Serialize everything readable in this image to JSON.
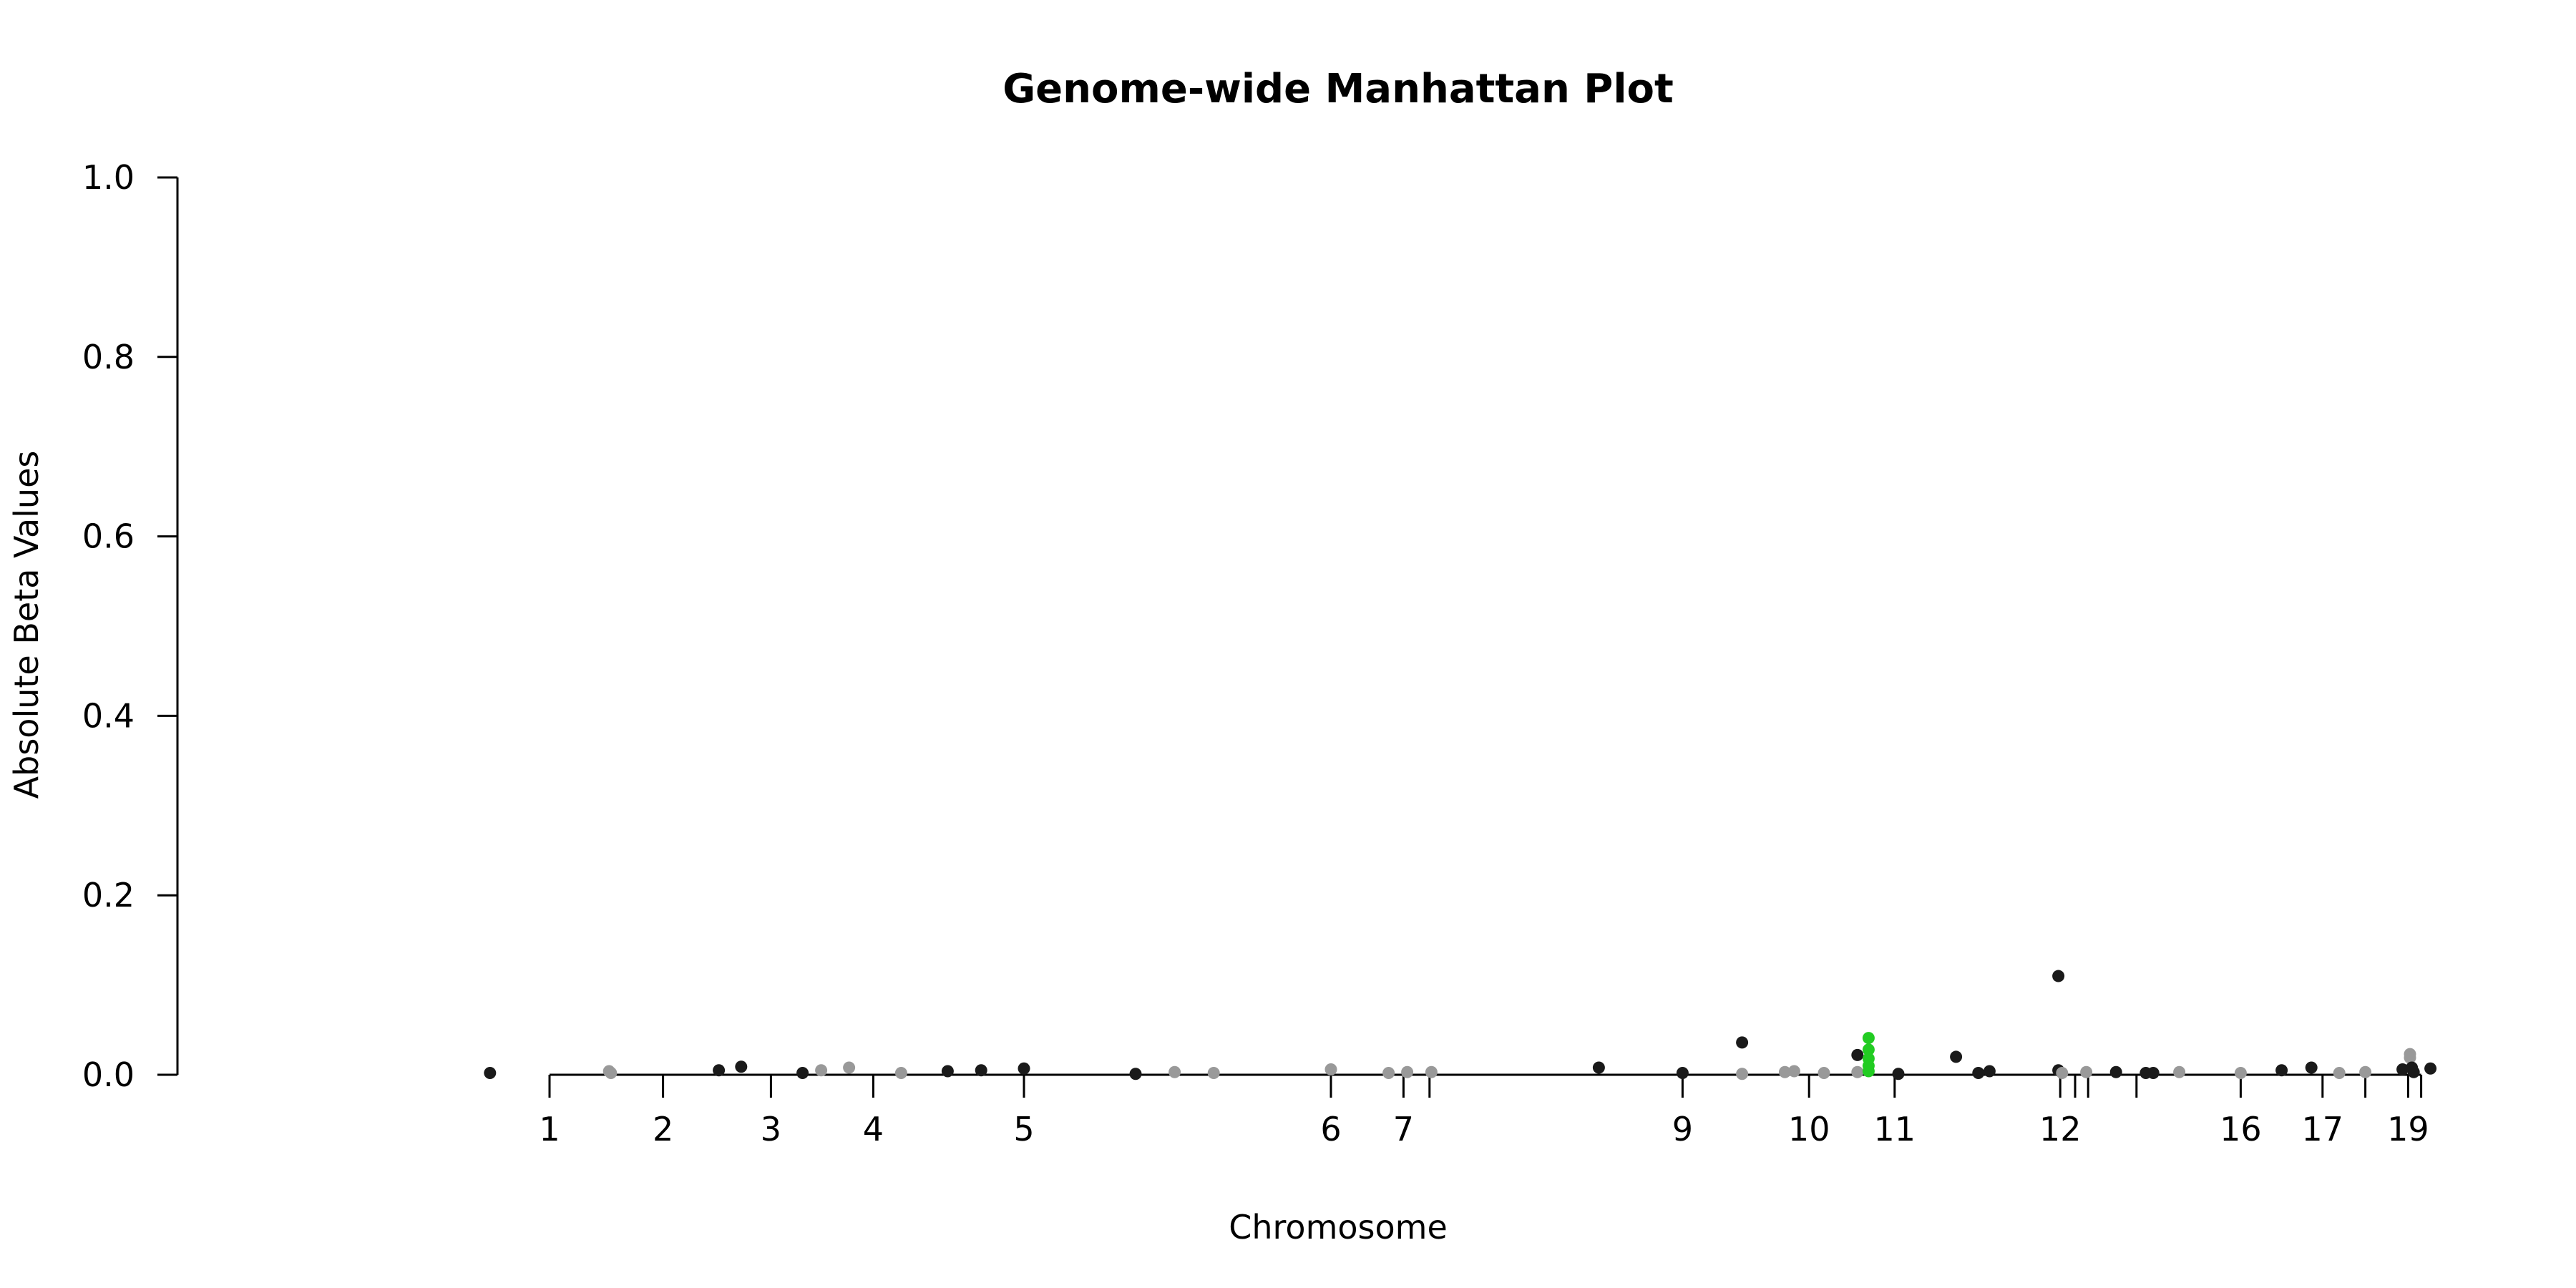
{
  "chart_data": {
    "type": "scatter",
    "title": "Genome-wide Manhattan Plot",
    "xlabel": "Chromosome",
    "ylabel": "Absolute Beta Values",
    "ylim": [
      0,
      1.0
    ],
    "y_ticks": [
      "0.0",
      "0.2",
      "0.4",
      "0.6",
      "0.8",
      "1.0"
    ],
    "y_tick_values": [
      0.0,
      0.2,
      0.4,
      0.6,
      0.8,
      1.0
    ],
    "x_ticks": [
      {
        "label": "1",
        "pos": 0.0
      },
      {
        "label": "2",
        "pos": 0.061
      },
      {
        "label": "3",
        "pos": 0.119
      },
      {
        "label": "4",
        "pos": 0.174
      },
      {
        "label": "5",
        "pos": 0.255
      },
      {
        "label": "6",
        "pos": 0.42
      },
      {
        "label": "7",
        "pos": 0.459
      },
      {
        "label": "",
        "pos": 0.473
      },
      {
        "label": "9",
        "pos": 0.609
      },
      {
        "label": "10",
        "pos": 0.677
      },
      {
        "label": "11",
        "pos": 0.723
      },
      {
        "label": "12",
        "pos": 0.812
      },
      {
        "label": "",
        "pos": 0.82
      },
      {
        "label": "",
        "pos": 0.827
      },
      {
        "label": "",
        "pos": 0.853
      },
      {
        "label": "16",
        "pos": 0.909
      },
      {
        "label": "17",
        "pos": 0.953
      },
      {
        "label": "",
        "pos": 0.976
      },
      {
        "label": "19",
        "pos": 0.999
      },
      {
        "label": "",
        "pos": 1.006
      }
    ],
    "xlim": [
      -0.04,
      1.01
    ],
    "colors": {
      "dark": "#1a1a1a",
      "light": "#999999",
      "highlight": "#22cc22"
    },
    "points": [
      {
        "x": -0.032,
        "y": 0.002,
        "c": "dark"
      },
      {
        "x": 0.032,
        "y": 0.004,
        "c": "light"
      },
      {
        "x": 0.033,
        "y": 0.002,
        "c": "light"
      },
      {
        "x": 0.091,
        "y": 0.005,
        "c": "dark"
      },
      {
        "x": 0.103,
        "y": 0.009,
        "c": "dark"
      },
      {
        "x": 0.136,
        "y": 0.002,
        "c": "dark"
      },
      {
        "x": 0.146,
        "y": 0.005,
        "c": "light"
      },
      {
        "x": 0.161,
        "y": 0.008,
        "c": "light"
      },
      {
        "x": 0.189,
        "y": 0.002,
        "c": "light"
      },
      {
        "x": 0.214,
        "y": 0.004,
        "c": "dark"
      },
      {
        "x": 0.232,
        "y": 0.005,
        "c": "dark"
      },
      {
        "x": 0.255,
        "y": 0.007,
        "c": "dark"
      },
      {
        "x": 0.315,
        "y": 0.001,
        "c": "dark"
      },
      {
        "x": 0.336,
        "y": 0.003,
        "c": "light"
      },
      {
        "x": 0.357,
        "y": 0.002,
        "c": "light"
      },
      {
        "x": 0.42,
        "y": 0.006,
        "c": "light"
      },
      {
        "x": 0.451,
        "y": 0.002,
        "c": "light"
      },
      {
        "x": 0.461,
        "y": 0.003,
        "c": "light"
      },
      {
        "x": 0.474,
        "y": 0.003,
        "c": "light"
      },
      {
        "x": 0.564,
        "y": 0.008,
        "c": "dark"
      },
      {
        "x": 0.609,
        "y": 0.002,
        "c": "dark"
      },
      {
        "x": 0.641,
        "y": 0.036,
        "c": "dark"
      },
      {
        "x": 0.641,
        "y": 0.001,
        "c": "light"
      },
      {
        "x": 0.664,
        "y": 0.003,
        "c": "light"
      },
      {
        "x": 0.669,
        "y": 0.004,
        "c": "light"
      },
      {
        "x": 0.685,
        "y": 0.002,
        "c": "light"
      },
      {
        "x": 0.703,
        "y": 0.022,
        "c": "dark"
      },
      {
        "x": 0.703,
        "y": 0.003,
        "c": "light"
      },
      {
        "x": 0.709,
        "y": 0.041,
        "c": "highlight"
      },
      {
        "x": 0.709,
        "y": 0.028,
        "c": "highlight"
      },
      {
        "x": 0.709,
        "y": 0.018,
        "c": "highlight"
      },
      {
        "x": 0.709,
        "y": 0.01,
        "c": "highlight"
      },
      {
        "x": 0.709,
        "y": 0.004,
        "c": "highlight"
      },
      {
        "x": 0.725,
        "y": 0.001,
        "c": "dark"
      },
      {
        "x": 0.756,
        "y": 0.02,
        "c": "dark"
      },
      {
        "x": 0.768,
        "y": 0.002,
        "c": "dark"
      },
      {
        "x": 0.774,
        "y": 0.004,
        "c": "dark"
      },
      {
        "x": 0.811,
        "y": 0.11,
        "c": "dark"
      },
      {
        "x": 0.811,
        "y": 0.005,
        "c": "dark"
      },
      {
        "x": 0.813,
        "y": 0.002,
        "c": "light"
      },
      {
        "x": 0.826,
        "y": 0.003,
        "c": "light"
      },
      {
        "x": 0.842,
        "y": 0.003,
        "c": "dark"
      },
      {
        "x": 0.858,
        "y": 0.002,
        "c": "dark"
      },
      {
        "x": 0.862,
        "y": 0.002,
        "c": "dark"
      },
      {
        "x": 0.876,
        "y": 0.003,
        "c": "light"
      },
      {
        "x": 0.909,
        "y": 0.002,
        "c": "light"
      },
      {
        "x": 0.931,
        "y": 0.005,
        "c": "dark"
      },
      {
        "x": 0.947,
        "y": 0.008,
        "c": "dark"
      },
      {
        "x": 0.962,
        "y": 0.002,
        "c": "light"
      },
      {
        "x": 0.976,
        "y": 0.003,
        "c": "light"
      },
      {
        "x": 0.996,
        "y": 0.006,
        "c": "dark"
      },
      {
        "x": 1.0,
        "y": 0.023,
        "c": "light"
      },
      {
        "x": 1.0,
        "y": 0.019,
        "c": "light"
      },
      {
        "x": 1.001,
        "y": 0.008,
        "c": "dark"
      },
      {
        "x": 1.002,
        "y": 0.003,
        "c": "dark"
      },
      {
        "x": 1.011,
        "y": 0.007,
        "c": "dark"
      }
    ]
  }
}
